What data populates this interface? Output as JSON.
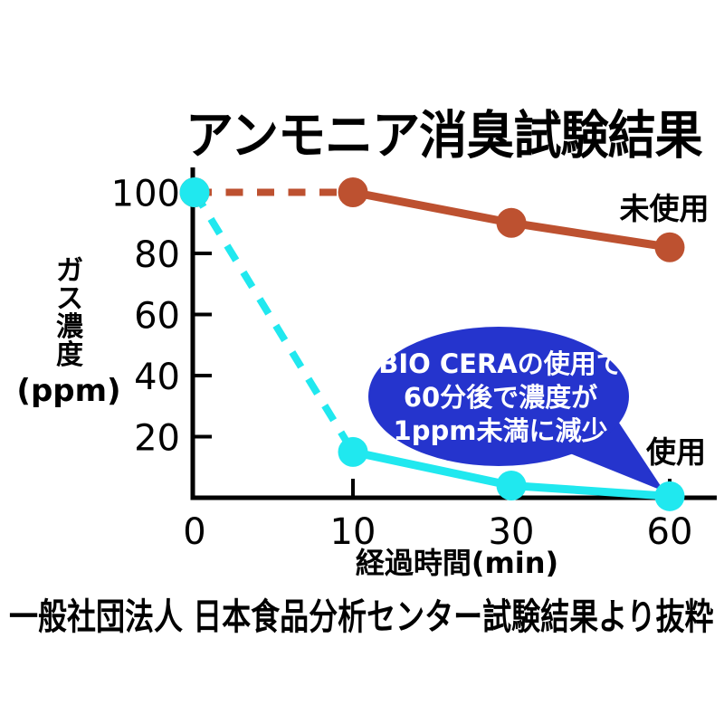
{
  "title": "アンモニア消臭試験結果",
  "footer": "一般社団法人 日本食品分析センター試験結果より抜粋",
  "annotation": {
    "lines": [
      "BIO CERAの使用で",
      "60分後で濃度が",
      "1ppm未満に減少"
    ],
    "bubble_color": "#2534CD",
    "text_color": "#FFFFFF"
  },
  "chart_data": {
    "type": "line",
    "x": [
      0,
      10,
      30,
      60
    ],
    "x_tick_labels": [
      "0",
      "10",
      "30",
      "60"
    ],
    "x_spacing": "equal-categorical",
    "xlabel": "経過時間(min)",
    "ylabel": "ガス濃度",
    "ylabel_unit": "(ppm)",
    "y_ticks": [
      100,
      80,
      60,
      40,
      20
    ],
    "ylim": [
      0,
      108
    ],
    "grid": false,
    "legend_position": "labels-at-line-ends",
    "series": [
      {
        "name": "未使用",
        "values": [
          100,
          100,
          90,
          82
        ],
        "color": "#BD5130",
        "line_style": "first-segment-dashed-then-solid",
        "marker": "circle"
      },
      {
        "name": "使用",
        "values": [
          100,
          15,
          4,
          0.5
        ],
        "color": "#20E8EF",
        "line_style": "first-segment-dashed-then-solid",
        "marker": "circle"
      }
    ]
  }
}
